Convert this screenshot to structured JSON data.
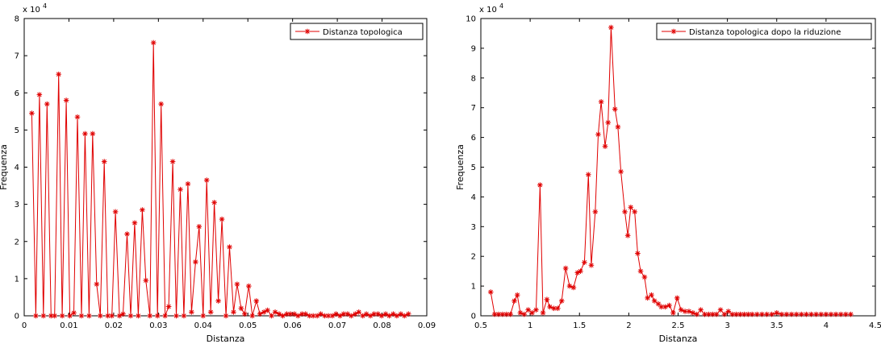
{
  "figure": {
    "chart_data": [
      {
        "type": "line",
        "title": "",
        "xlabel": "Distanza",
        "ylabel": "Frequenza",
        "y_exponent_label": "x 10",
        "y_exponent": "4",
        "xlim": [
          0,
          0.09
        ],
        "ylim": [
          0,
          8
        ],
        "xticks": [
          "0",
          "0.01",
          "0.02",
          "0.03",
          "0.04",
          "0.05",
          "0.06",
          "0.07",
          "0.08",
          "0.09"
        ],
        "yticks": [
          "0",
          "1",
          "2",
          "3",
          "4",
          "5",
          "6",
          "7",
          "8"
        ],
        "legend_position": "top-right",
        "grid": false,
        "color": "#e00000",
        "series": [
          {
            "name": "Distanza topologica",
            "x": [
              0.0017,
              0.0026,
              0.0034,
              0.0043,
              0.0051,
              0.006,
              0.0068,
              0.0077,
              0.0085,
              0.0094,
              0.0102,
              0.0111,
              0.0119,
              0.0128,
              0.0136,
              0.0145,
              0.0153,
              0.0162,
              0.017,
              0.0179,
              0.0187,
              0.0196,
              0.0204,
              0.0213,
              0.0221,
              0.023,
              0.0238,
              0.0247,
              0.0255,
              0.0264,
              0.0272,
              0.0281,
              0.0289,
              0.0298,
              0.0306,
              0.0315,
              0.0323,
              0.0332,
              0.034,
              0.0349,
              0.0357,
              0.0366,
              0.0374,
              0.0383,
              0.0391,
              0.04,
              0.0408,
              0.0417,
              0.0425,
              0.0434,
              0.0442,
              0.0451,
              0.0459,
              0.0468,
              0.0476,
              0.0485,
              0.0493,
              0.0502,
              0.051,
              0.0519,
              0.0527,
              0.0536,
              0.0544,
              0.0553,
              0.0561,
              0.057,
              0.0578,
              0.0587,
              0.0595,
              0.0604,
              0.0612,
              0.0621,
              0.0629,
              0.0638,
              0.0646,
              0.0655,
              0.0663,
              0.0672,
              0.068,
              0.0689,
              0.0697,
              0.0706,
              0.0714,
              0.0723,
              0.0731,
              0.074,
              0.0748,
              0.0757,
              0.0765,
              0.0774,
              0.0782,
              0.0791,
              0.0799,
              0.0808,
              0.0816,
              0.0825,
              0.0833,
              0.0842,
              0.085,
              0.0859
            ],
            "y": [
              5.45,
              0,
              5.95,
              0,
              5.7,
              0,
              0,
              6.5,
              0,
              5.8,
              0,
              0.08,
              5.35,
              0,
              4.9,
              0,
              4.9,
              0.85,
              0,
              4.15,
              0,
              0,
              2.8,
              0,
              0.05,
              2.2,
              0,
              2.5,
              0,
              2.85,
              0.95,
              0,
              7.35,
              0,
              5.7,
              0,
              0.25,
              4.15,
              0,
              3.4,
              0,
              3.55,
              0.1,
              1.45,
              2.4,
              0,
              3.65,
              0.1,
              3.05,
              0.4,
              2.6,
              0,
              1.85,
              0.1,
              0.85,
              0.2,
              0.05,
              0.8,
              0,
              0.4,
              0.05,
              0.1,
              0.15,
              0,
              0.1,
              0.05,
              0,
              0.05,
              0.05,
              0.05,
              0,
              0.05,
              0.05,
              0,
              0,
              0,
              0.05,
              0,
              0,
              0,
              0.05,
              0,
              0.05,
              0.05,
              0,
              0.05,
              0.1,
              0,
              0.05,
              0,
              0.05,
              0.05,
              0,
              0.05,
              0,
              0.05,
              0,
              0.05,
              0,
              0.05
            ]
          }
        ]
      },
      {
        "type": "line",
        "title": "",
        "xlabel": "Distanza",
        "ylabel": "Frequenza",
        "y_exponent_label": "x 10",
        "y_exponent": "4",
        "xlim": [
          0.5,
          4.5
        ],
        "ylim": [
          0,
          10
        ],
        "xticks": [
          "0.5",
          "1",
          "1.5",
          "2",
          "2.5",
          "3",
          "3.5",
          "4",
          "4.5"
        ],
        "yticks": [
          "0",
          "1",
          "2",
          "3",
          "4",
          "5",
          "6",
          "7",
          "8",
          "9",
          "10"
        ],
        "legend_position": "top-right",
        "grid": false,
        "color": "#e00000",
        "series": [
          {
            "name": "Distanza topologica dopo la riduzione",
            "x": [
              0.6,
              0.64,
              0.68,
              0.72,
              0.76,
              0.8,
              0.84,
              0.87,
              0.9,
              0.94,
              0.98,
              1.02,
              1.06,
              1.1,
              1.13,
              1.17,
              1.2,
              1.24,
              1.28,
              1.32,
              1.36,
              1.4,
              1.44,
              1.48,
              1.51,
              1.55,
              1.59,
              1.62,
              1.66,
              1.69,
              1.72,
              1.76,
              1.79,
              1.82,
              1.86,
              1.89,
              1.92,
              1.96,
              1.99,
              2.02,
              2.06,
              2.09,
              2.12,
              2.16,
              2.19,
              2.23,
              2.26,
              2.3,
              2.33,
              2.37,
              2.41,
              2.45,
              2.49,
              2.53,
              2.57,
              2.61,
              2.65,
              2.69,
              2.73,
              2.77,
              2.81,
              2.85,
              2.89,
              2.93,
              2.97,
              3.01,
              3.05,
              3.09,
              3.13,
              3.17,
              3.21,
              3.25,
              3.3,
              3.35,
              3.4,
              3.45,
              3.5,
              3.55,
              3.6,
              3.65,
              3.7,
              3.75,
              3.8,
              3.85,
              3.9,
              3.95,
              4.0,
              4.05,
              4.1,
              4.15,
              4.2,
              4.25
            ],
            "y": [
              0.8,
              0.05,
              0.05,
              0.05,
              0.05,
              0.05,
              0.5,
              0.7,
              0.1,
              0.05,
              0.2,
              0.1,
              0.2,
              4.4,
              0.1,
              0.55,
              0.3,
              0.25,
              0.25,
              0.5,
              1.6,
              1.0,
              0.95,
              1.45,
              1.5,
              1.8,
              4.75,
              1.7,
              3.5,
              6.1,
              7.2,
              5.7,
              6.5,
              9.7,
              6.95,
              6.35,
              4.85,
              3.5,
              2.7,
              3.65,
              3.5,
              2.1,
              1.5,
              1.3,
              0.6,
              0.7,
              0.5,
              0.4,
              0.3,
              0.3,
              0.35,
              0.1,
              0.6,
              0.2,
              0.15,
              0.15,
              0.1,
              0.05,
              0.2,
              0.05,
              0.05,
              0.05,
              0.05,
              0.2,
              0.05,
              0.15,
              0.05,
              0.05,
              0.05,
              0.05,
              0.05,
              0.05,
              0.05,
              0.05,
              0.05,
              0.05,
              0.1,
              0.05,
              0.05,
              0.05,
              0.05,
              0.05,
              0.05,
              0.05,
              0.05,
              0.05,
              0.05,
              0.05,
              0.05,
              0.05,
              0.05,
              0.05
            ]
          }
        ]
      }
    ]
  }
}
